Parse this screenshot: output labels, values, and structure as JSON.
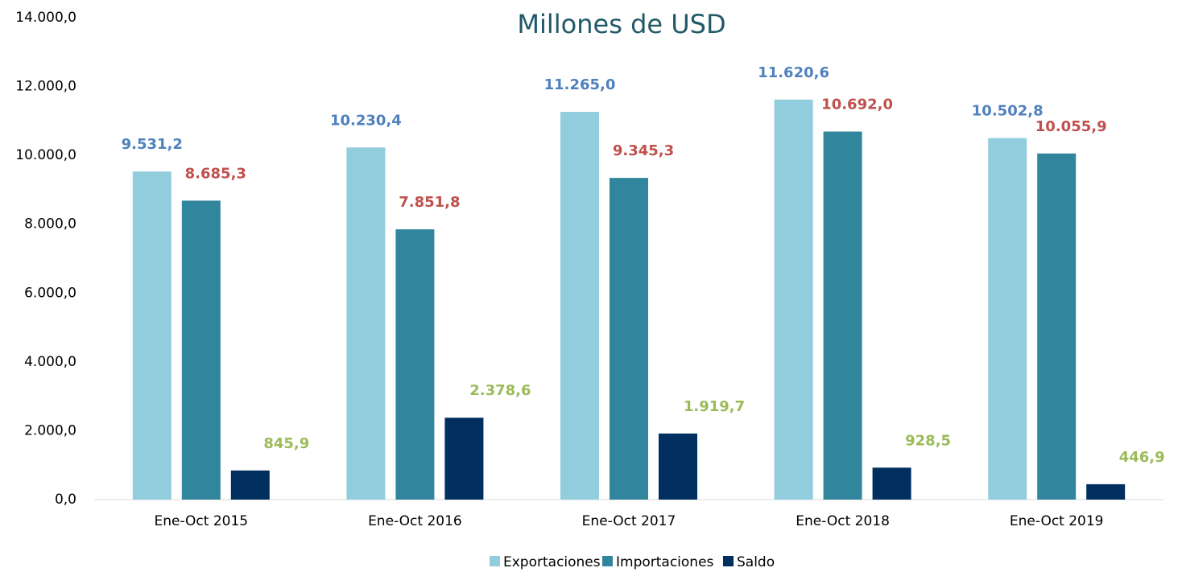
{
  "chart_data": {
    "type": "bar",
    "title": "Millones de USD",
    "categories": [
      "Ene-Oct 2015",
      "Ene-Oct 2016",
      "Ene-Oct 2017",
      "Ene-Oct 2018",
      "Ene-Oct 2019"
    ],
    "series": [
      {
        "name": "Exportaciones",
        "color": "#92cddd",
        "label_color": "#4f81bd",
        "values": [
          9531.2,
          10230.4,
          11265.0,
          11620.6,
          10502.8
        ],
        "value_labels": [
          "9.531,2",
          "10.230,4",
          "11.265,0",
          "11.620,6",
          "10.502,8"
        ]
      },
      {
        "name": "Importaciones",
        "color": "#31859c",
        "label_color": "#c0504d",
        "values": [
          8685.3,
          7851.8,
          9345.3,
          10692.0,
          10055.9
        ],
        "value_labels": [
          "8.685,3",
          "7.851,8",
          "9.345,3",
          "10.692,0",
          "10.055,9"
        ]
      },
      {
        "name": "Saldo",
        "color": "#002f5f",
        "label_color": "#9bbb59",
        "values": [
          845.9,
          2378.6,
          1919.7,
          928.5,
          446.9
        ],
        "value_labels": [
          "845,9",
          "2.378,6",
          "1.919,7",
          "928,5",
          "446,9"
        ]
      }
    ],
    "ylim": [
      0,
      14000
    ],
    "yticks": [
      {
        "value": 0,
        "label": "0,0"
      },
      {
        "value": 2000,
        "label": "2.000,0"
      },
      {
        "value": 4000,
        "label": "4.000,0"
      },
      {
        "value": 6000,
        "label": "6.000,0"
      },
      {
        "value": 8000,
        "label": "8.000,0"
      },
      {
        "value": 10000,
        "label": "10.000,0"
      },
      {
        "value": 12000,
        "label": "12.000,0"
      },
      {
        "value": 14000,
        "label": "14.000,0"
      }
    ],
    "grid": false,
    "legend": "bottom"
  }
}
